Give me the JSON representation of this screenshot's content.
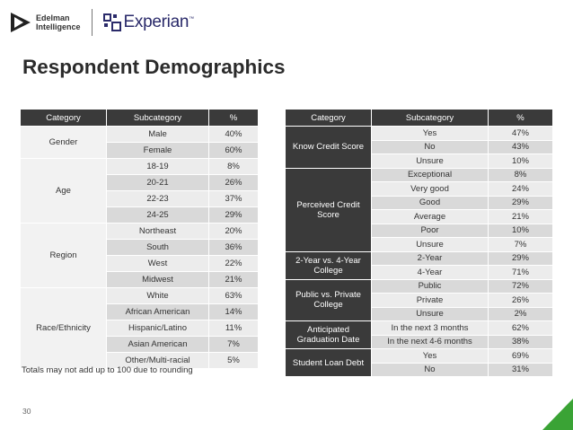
{
  "brand": {
    "edelman_line1": "Edelman",
    "edelman_line2": "Intelligence",
    "experian": "Experian",
    "experian_tm": "™"
  },
  "title": "Respondent Demographics",
  "headers": {
    "category": "Category",
    "subcategory": "Subcategory",
    "pct": "%"
  },
  "left_groups": [
    {
      "category": "Gender",
      "rows": [
        {
          "sub": "Male",
          "pct": "40%"
        },
        {
          "sub": "Female",
          "pct": "60%"
        }
      ]
    },
    {
      "category": "Age",
      "rows": [
        {
          "sub": "18-19",
          "pct": "8%"
        },
        {
          "sub": "20-21",
          "pct": "26%"
        },
        {
          "sub": "22-23",
          "pct": "37%"
        },
        {
          "sub": "24-25",
          "pct": "29%"
        }
      ]
    },
    {
      "category": "Region",
      "rows": [
        {
          "sub": "Northeast",
          "pct": "20%"
        },
        {
          "sub": "South",
          "pct": "36%"
        },
        {
          "sub": "West",
          "pct": "22%"
        },
        {
          "sub": "Midwest",
          "pct": "21%"
        }
      ]
    },
    {
      "category": "Race/Ethnicity",
      "rows": [
        {
          "sub": "White",
          "pct": "63%"
        },
        {
          "sub": "African American",
          "pct": "14%"
        },
        {
          "sub": "Hispanic/Latino",
          "pct": "11%"
        },
        {
          "sub": "Asian American",
          "pct": "7%"
        },
        {
          "sub": "Other/Multi-racial",
          "pct": "5%"
        }
      ]
    }
  ],
  "right_groups": [
    {
      "category": "Know Credit Score",
      "rows": [
        {
          "sub": "Yes",
          "pct": "47%"
        },
        {
          "sub": "No",
          "pct": "43%"
        },
        {
          "sub": "Unsure",
          "pct": "10%"
        }
      ]
    },
    {
      "category": "Perceived Credit Score",
      "rows": [
        {
          "sub": "Exceptional",
          "pct": "8%"
        },
        {
          "sub": "Very good",
          "pct": "24%"
        },
        {
          "sub": "Good",
          "pct": "29%"
        },
        {
          "sub": "Average",
          "pct": "21%"
        },
        {
          "sub": "Poor",
          "pct": "10%"
        },
        {
          "sub": "Unsure",
          "pct": "7%"
        }
      ]
    },
    {
      "category": "2-Year vs. 4-Year College",
      "rows": [
        {
          "sub": "2-Year",
          "pct": "29%"
        },
        {
          "sub": "4-Year",
          "pct": "71%"
        }
      ]
    },
    {
      "category": "Public vs. Private College",
      "rows": [
        {
          "sub": "Public",
          "pct": "72%"
        },
        {
          "sub": "Private",
          "pct": "26%"
        },
        {
          "sub": "Unsure",
          "pct": "2%"
        }
      ]
    },
    {
      "category": "Anticipated Graduation Date",
      "rows": [
        {
          "sub": "In the next 3 months",
          "pct": "62%"
        },
        {
          "sub": "In the next 4-6 months",
          "pct": "38%"
        }
      ]
    },
    {
      "category": "Student Loan Debt",
      "rows": [
        {
          "sub": "Yes",
          "pct": "69%"
        },
        {
          "sub": "No",
          "pct": "31%"
        }
      ]
    }
  ],
  "footnote": "Totals may not add up to 100 due to rounding",
  "page_number": "30",
  "colors": {
    "accent_green": "#3aa335",
    "header_bg": "#3a3a3a",
    "row_light": "#ececec",
    "row_dark": "#d9d9d9"
  }
}
